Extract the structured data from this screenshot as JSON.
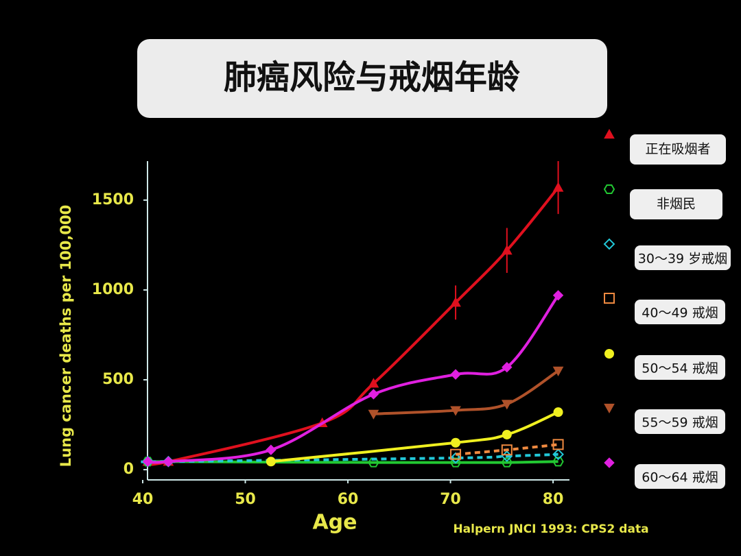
{
  "chart_data": {
    "type": "line",
    "title": "肺癌风险与戒烟年龄",
    "y_label": "Lung cancer deaths per 100,000",
    "x_label": "Age",
    "source": "Halpern JNCI 1993: CPS2 data",
    "xlim": [
      40,
      82
    ],
    "xticks": [
      40,
      50,
      60,
      70,
      80
    ],
    "ylim": [
      -57,
      1717
    ],
    "yticks": [
      0,
      500,
      1000,
      1500
    ],
    "series": [
      {
        "name": "正在吸烟者",
        "color": "#e0101e",
        "marker": "triangle",
        "x": [
          40.5,
          42.5,
          57.5,
          62.5,
          70.5,
          75.5,
          80.5
        ],
        "values": [
          45,
          45,
          260,
          480,
          930,
          1220,
          1570
        ],
        "errors": [
          null,
          null,
          null,
          null,
          95,
          125,
          147
        ]
      },
      {
        "name": "非烟民",
        "color": "#22c832",
        "marker": "hexagon",
        "x": [
          40.5,
          62.5,
          70.5,
          75.5,
          80.5
        ],
        "values": [
          45,
          40,
          40,
          40,
          45
        ]
      },
      {
        "name": "30～39 岁戒烟",
        "color": "#22c8d8",
        "marker": "diamond",
        "dash": true,
        "x": [
          40.5,
          42.5,
          70.5,
          75.5,
          80.5
        ],
        "values": [
          45,
          45,
          65,
          75,
          85
        ]
      },
      {
        "name": "40～49 戒烟",
        "color": "#f08a40",
        "marker": "square",
        "dash": true,
        "x": [
          70.5,
          75.5,
          80.5
        ],
        "values": [
          85,
          110,
          140
        ]
      },
      {
        "name": "50～54 戒烟",
        "color": "#f0f020",
        "marker": "circle",
        "x": [
          52.5,
          70.5,
          75.5,
          80.5
        ],
        "values": [
          45,
          150,
          195,
          320
        ]
      },
      {
        "name": "55～59 戒烟",
        "color": "#b0522a",
        "marker": "down-triangle",
        "x": [
          62.5,
          70.5,
          75.5,
          80.5
        ],
        "values": [
          310,
          330,
          365,
          550
        ]
      },
      {
        "name": "60～64 戒烟",
        "color": "#e020e0",
        "marker": "diamond-filled",
        "x": [
          40.5,
          42.5,
          52.5,
          62.5,
          70.5,
          75.5,
          80.5
        ],
        "values": [
          45,
          45,
          110,
          420,
          530,
          570,
          970
        ]
      }
    ]
  }
}
